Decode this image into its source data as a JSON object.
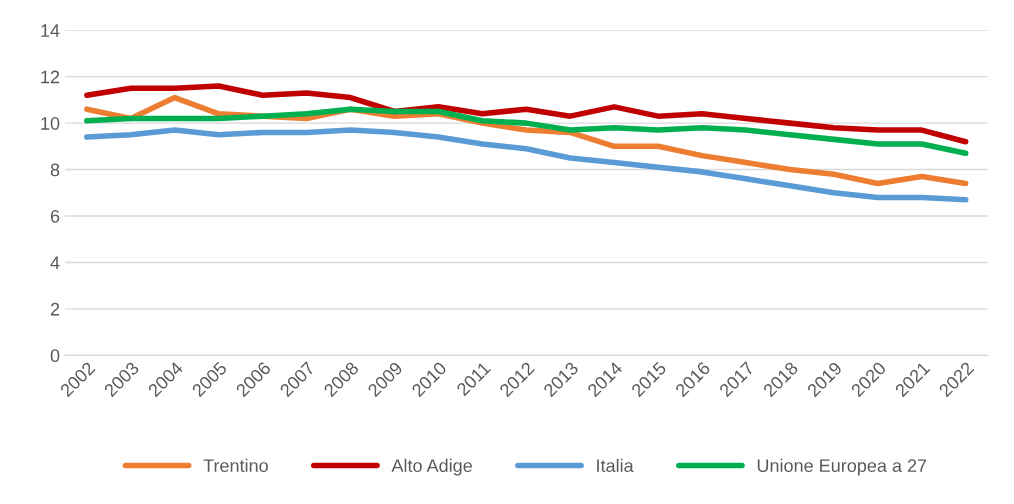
{
  "chart_data": {
    "type": "line",
    "categories": [
      "2002",
      "2003",
      "2004",
      "2005",
      "2006",
      "2007",
      "2008",
      "2009",
      "2010",
      "2011",
      "2012",
      "2013",
      "2014",
      "2015",
      "2016",
      "2017",
      "2018",
      "2019",
      "2020",
      "2021",
      "2022"
    ],
    "series": [
      {
        "name": "Trentino",
        "color": "#ed7d31",
        "values": [
          10.6,
          10.2,
          11.1,
          10.4,
          10.3,
          10.2,
          10.6,
          10.3,
          10.4,
          10.0,
          9.7,
          9.6,
          9.0,
          9.0,
          8.6,
          8.3,
          8.0,
          7.8,
          7.4,
          7.7,
          7.4
        ]
      },
      {
        "name": "Alto Adige",
        "color": "#c00000",
        "values": [
          11.2,
          11.5,
          11.5,
          11.6,
          11.2,
          11.3,
          11.1,
          10.5,
          10.7,
          10.4,
          10.6,
          10.3,
          10.7,
          10.3,
          10.4,
          10.2,
          10.0,
          9.8,
          9.7,
          9.7,
          9.2
        ]
      },
      {
        "name": "Italia",
        "color": "#5b9bd5",
        "values": [
          9.4,
          9.5,
          9.7,
          9.5,
          9.6,
          9.6,
          9.7,
          9.6,
          9.4,
          9.1,
          8.9,
          8.5,
          8.3,
          8.1,
          7.9,
          7.6,
          7.3,
          7.0,
          6.8,
          6.8,
          6.7
        ]
      },
      {
        "name": "Unione Europea a 27",
        "color": "#00b050",
        "values": [
          10.1,
          10.2,
          10.2,
          10.2,
          10.3,
          10.4,
          10.6,
          10.5,
          10.5,
          10.1,
          10.0,
          9.7,
          9.8,
          9.7,
          9.8,
          9.7,
          9.5,
          9.3,
          9.1,
          9.1,
          8.7
        ]
      }
    ],
    "ylim": [
      0,
      14
    ],
    "yticks": [
      0,
      2,
      4,
      6,
      8,
      10,
      12,
      14
    ],
    "grid": "y",
    "legend": "bottom",
    "marker": "none",
    "line_style": "solid"
  }
}
